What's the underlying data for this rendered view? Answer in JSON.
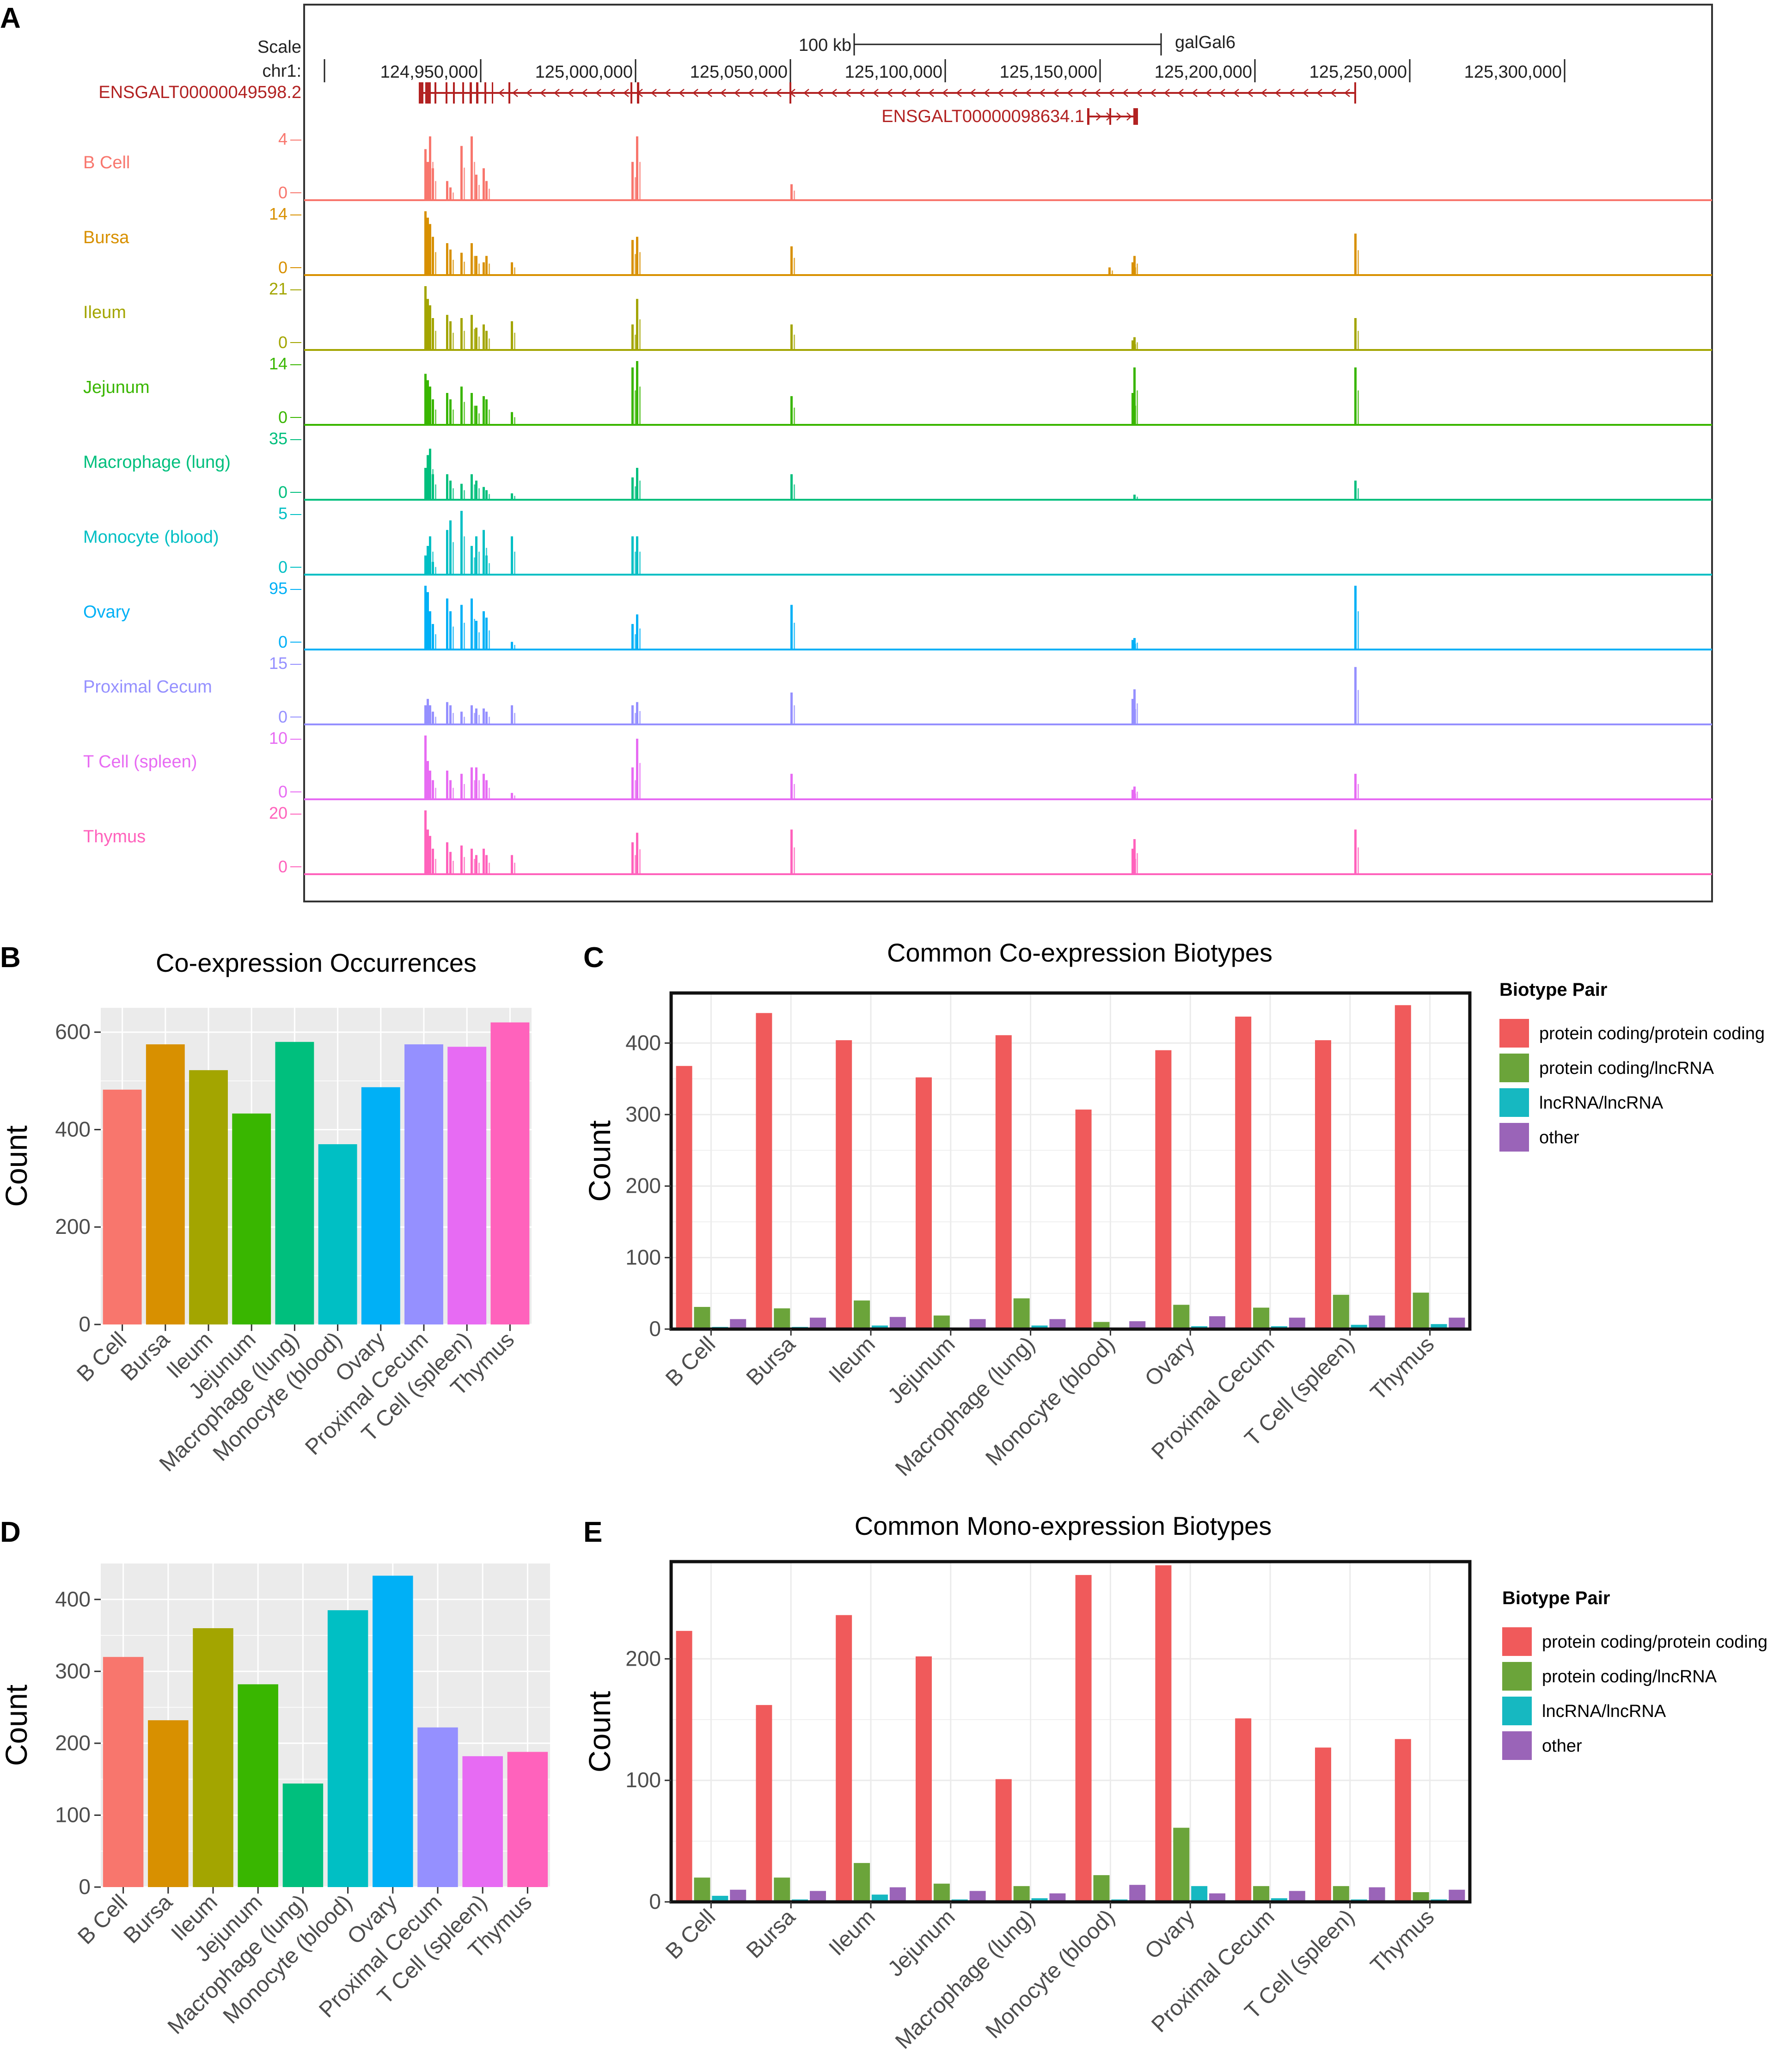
{
  "panel_letters": [
    "A",
    "B",
    "C",
    "D",
    "E"
  ],
  "tissues": [
    "B Cell",
    "Bursa",
    "Ileum",
    "Jejunum",
    "Macrophage (lung)",
    "Monocyte (blood)",
    "Ovary",
    "Proximal Cecum",
    "T Cell (spleen)",
    "Thymus"
  ],
  "colors": {
    "tissues": [
      "#F8766D",
      "#D89000",
      "#A3A500",
      "#39B600",
      "#00BF7D",
      "#00BFC4",
      "#00B0F6",
      "#9590FF",
      "#E76BF3",
      "#FF62BC"
    ],
    "biotypes": [
      "#F05A5B",
      "#6BA43A",
      "#16B8C1",
      "#9A64B8"
    ],
    "gene": "#B22222",
    "browser_text": "#222222"
  },
  "browser": {
    "scale_label": "Scale",
    "scale_bar_label": "100 kb",
    "assembly": "galGal6",
    "chrom_label": "chr1:",
    "positions": [
      "124,950,000",
      "125,000,000",
      "125,050,000",
      "125,100,000",
      "125,150,000",
      "125,200,000",
      "125,250,000",
      "125,300,000"
    ],
    "gene1": "ENSGALT00000049598.2",
    "gene2": "ENSGALT00000098634.1",
    "tracks": [
      {
        "name": "B Cell",
        "max": "4",
        "min": "0"
      },
      {
        "name": "Bursa",
        "max": "14",
        "min": "0"
      },
      {
        "name": "Ileum",
        "max": "21",
        "min": "0"
      },
      {
        "name": "Jejunum",
        "max": "14",
        "min": "0"
      },
      {
        "name": "Macrophage (lung)",
        "max": "35",
        "min": "0"
      },
      {
        "name": "Monocyte (blood)",
        "max": "5",
        "min": "0"
      },
      {
        "name": "Ovary",
        "max": "95",
        "min": "0"
      },
      {
        "name": "Proximal Cecum",
        "max": "15",
        "min": "0"
      },
      {
        "name": "T Cell (spleen)",
        "max": "10",
        "min": "0"
      },
      {
        "name": "Thymus",
        "max": "20",
        "min": "0"
      }
    ]
  },
  "chart_data": [
    {
      "id": "B",
      "type": "bar",
      "title": "Co-expression Occurrences",
      "xlabel": "",
      "ylabel": "Count",
      "ylim": [
        0,
        650
      ],
      "yticks": [
        0,
        200,
        400,
        600
      ],
      "categories": [
        "B Cell",
        "Bursa",
        "Ileum",
        "Jejunum",
        "Macrophage (lung)",
        "Monocyte (blood)",
        "Ovary",
        "Proximal Cecum",
        "T Cell (spleen)",
        "Thymus"
      ],
      "values": [
        482,
        575,
        522,
        433,
        580,
        370,
        487,
        575,
        570,
        620
      ]
    },
    {
      "id": "C",
      "type": "bar",
      "title": "Common Co-expression Biotypes",
      "xlabel": "",
      "ylabel": "Count",
      "ylim": [
        0,
        470
      ],
      "yticks": [
        0,
        100,
        200,
        300,
        400
      ],
      "legend_title": "Biotype Pair",
      "categories": [
        "B Cell",
        "Bursa",
        "Ileum",
        "Jejunum",
        "Macrophage (lung)",
        "Monocyte (blood)",
        "Ovary",
        "Proximal Cecum",
        "T Cell (spleen)",
        "Thymus"
      ],
      "series": [
        {
          "name": "protein coding/protein coding",
          "values": [
            368,
            442,
            404,
            352,
            411,
            307,
            390,
            437,
            404,
            453
          ]
        },
        {
          "name": "protein coding/lncRNA",
          "values": [
            31,
            29,
            40,
            19,
            43,
            10,
            34,
            30,
            48,
            51
          ]
        },
        {
          "name": "lncRNA/lncRNA",
          "values": [
            3,
            3,
            5,
            2,
            5,
            2,
            4,
            4,
            6,
            7
          ]
        },
        {
          "name": "other",
          "values": [
            14,
            16,
            17,
            14,
            14,
            11,
            18,
            16,
            19,
            16
          ]
        }
      ]
    },
    {
      "id": "D",
      "type": "bar",
      "title": "",
      "xlabel": "",
      "ylabel": "Count",
      "ylim": [
        0,
        450
      ],
      "yticks": [
        0,
        100,
        200,
        300,
        400
      ],
      "categories": [
        "B Cell",
        "Bursa",
        "Ileum",
        "Jejunum",
        "Macrophage (lung)",
        "Monocyte (blood)",
        "Ovary",
        "Proximal Cecum",
        "T Cell (spleen)",
        "Thymus"
      ],
      "values": [
        320,
        232,
        360,
        282,
        144,
        385,
        433,
        222,
        182,
        188
      ]
    },
    {
      "id": "E",
      "type": "bar",
      "title": "Common Mono-expression Biotypes",
      "xlabel": "",
      "ylabel": "Count",
      "ylim": [
        0,
        280
      ],
      "yticks": [
        0,
        100,
        200
      ],
      "legend_title": "Biotype Pair",
      "categories": [
        "B Cell",
        "Bursa",
        "Ileum",
        "Jejunum",
        "Macrophage (lung)",
        "Monocyte (blood)",
        "Ovary",
        "Proximal Cecum",
        "T Cell (spleen)",
        "Thymus"
      ],
      "series": [
        {
          "name": "protein coding/protein coding",
          "values": [
            223,
            162,
            236,
            202,
            101,
            269,
            277,
            151,
            127,
            134
          ]
        },
        {
          "name": "protein coding/lncRNA",
          "values": [
            20,
            20,
            32,
            15,
            13,
            22,
            61,
            13,
            13,
            8
          ]
        },
        {
          "name": "lncRNA/lncRNA",
          "values": [
            5,
            2,
            6,
            2,
            3,
            2,
            13,
            3,
            2,
            2
          ]
        },
        {
          "name": "other",
          "values": [
            10,
            9,
            12,
            9,
            7,
            14,
            7,
            9,
            12,
            10
          ]
        }
      ]
    }
  ]
}
